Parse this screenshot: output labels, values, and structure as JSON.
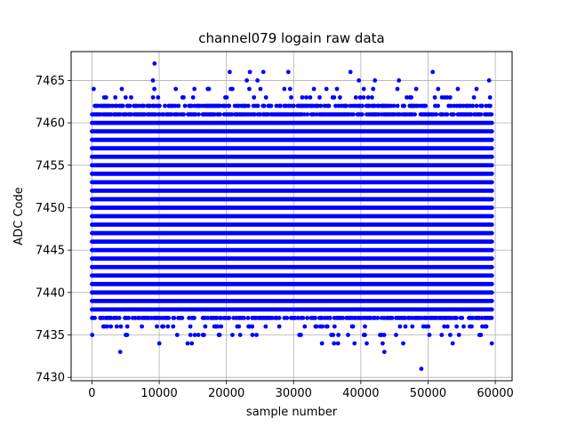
{
  "chart_data": {
    "type": "scatter",
    "title": "channel079 logain raw data",
    "xlabel": "sample number",
    "ylabel": "ADC Code",
    "xlim": [
      -3100,
      62500
    ],
    "ylim": [
      7429.6,
      7468.4
    ],
    "xticks": [
      0,
      10000,
      20000,
      30000,
      40000,
      50000,
      60000
    ],
    "yticks": [
      7430,
      7435,
      7440,
      7445,
      7450,
      7455,
      7460,
      7465
    ],
    "grid": true,
    "marker_color": "#0000ff",
    "series": [
      {
        "x_range": [
          0,
          59500
        ],
        "dense_y_range": [
          7437,
          7462
        ],
        "y_values_per_row": {
          "7461": 0.8,
          "7462": 0.6,
          "7463": 0.12,
          "7464": 0.07,
          "7465": 0.025,
          "7466": 0.008,
          "7437": 0.65,
          "7436": 0.18,
          "7435": 0.12,
          "7434": 0.04
        },
        "outliers": [
          {
            "x": 9300,
            "y": 7467
          },
          {
            "x": 20500,
            "y": 7466
          },
          {
            "x": 23500,
            "y": 7466
          },
          {
            "x": 25500,
            "y": 7466
          },
          {
            "x": 4200,
            "y": 7433
          },
          {
            "x": 43500,
            "y": 7433
          },
          {
            "x": 49000,
            "y": 7431
          }
        ]
      }
    ]
  }
}
